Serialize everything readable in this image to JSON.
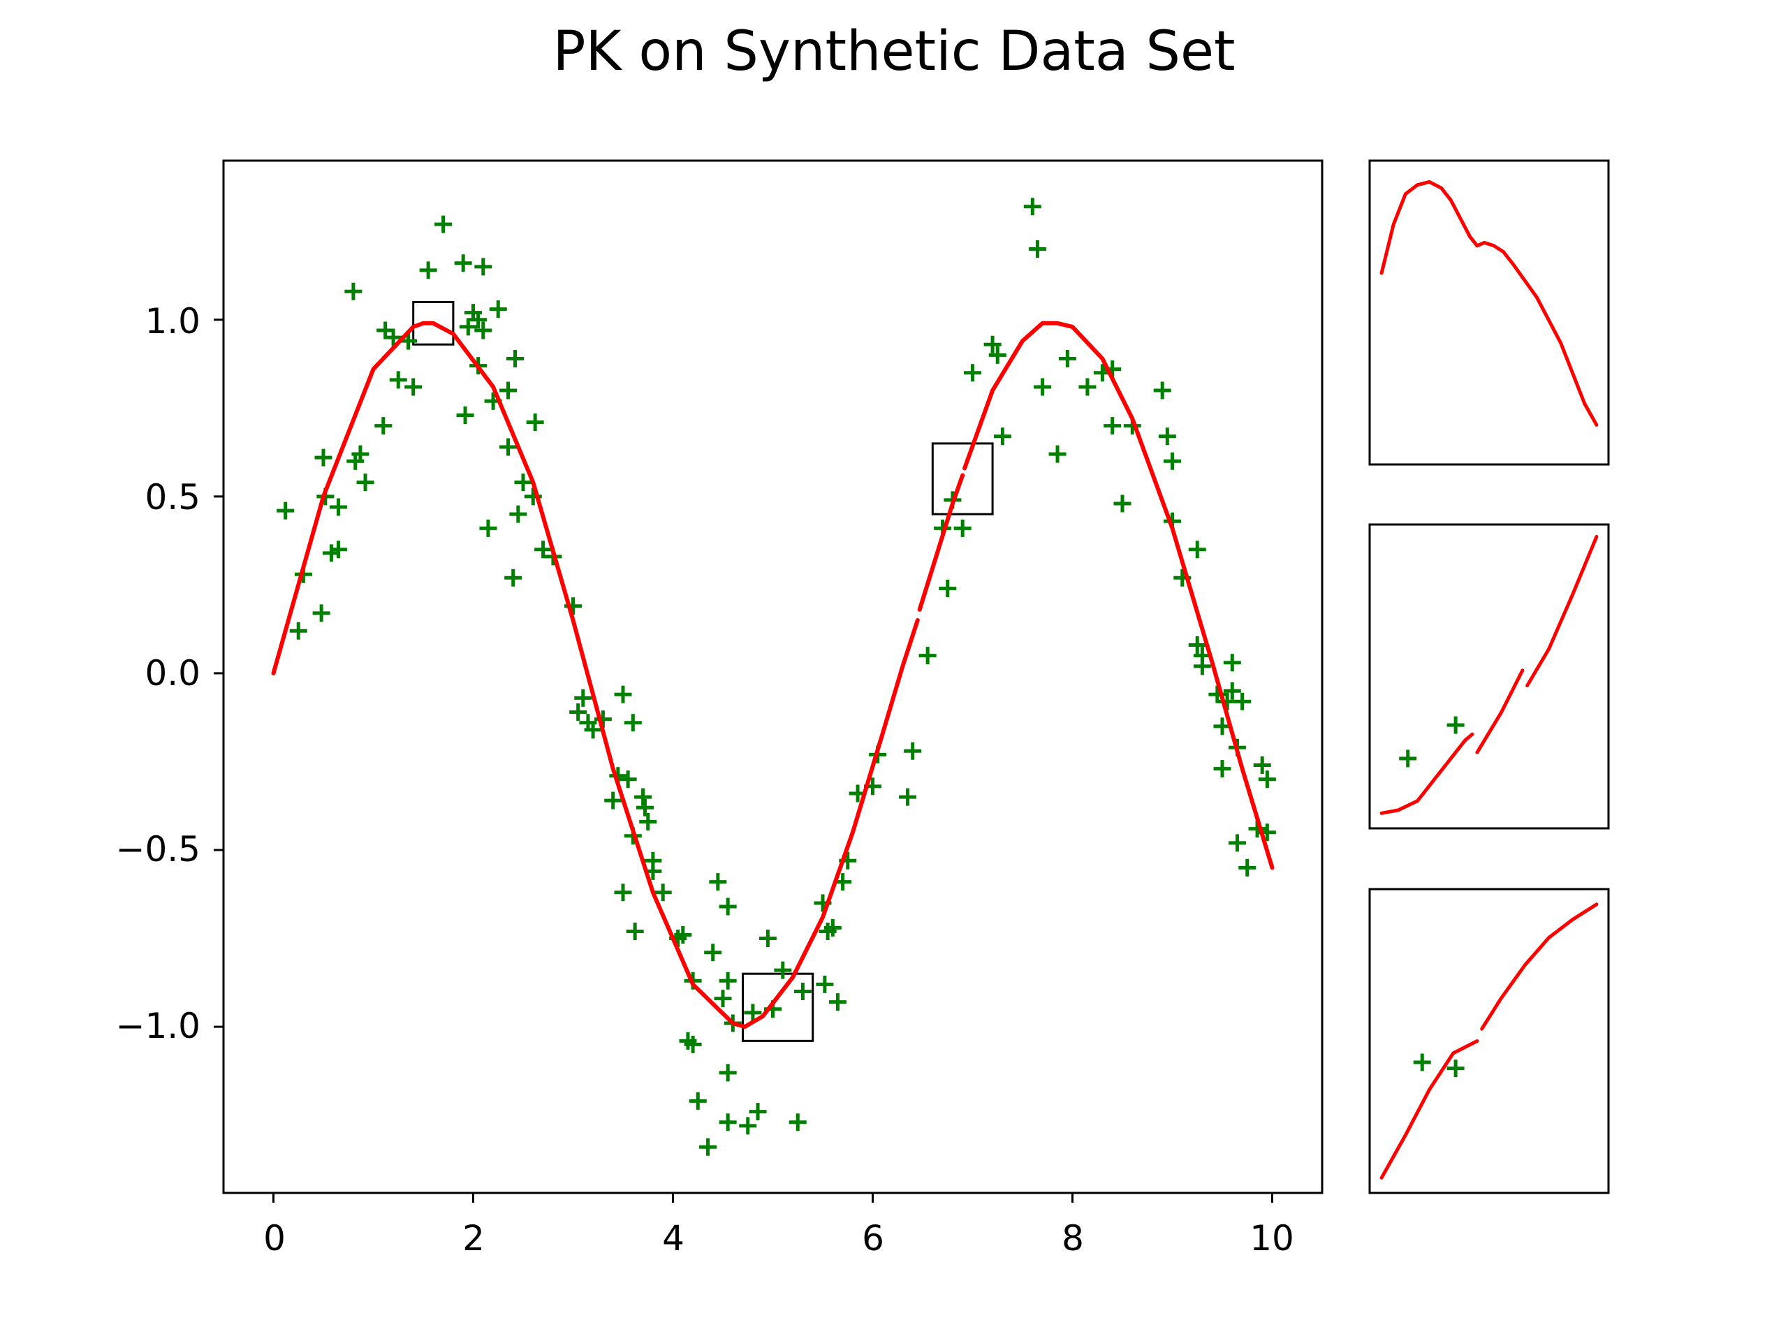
{
  "chart_data": {
    "title": "PK on Synthetic Data Set",
    "colors": {
      "data_points": "#007f00",
      "fit_curve": "#ff0000",
      "frame": "#000000",
      "background": "#ffffff"
    },
    "main": {
      "type": "scatter",
      "xlim": [
        -0.5,
        10.5
      ],
      "ylim": [
        -1.47,
        1.45
      ],
      "x_ticks": [
        0,
        2,
        4,
        6,
        8,
        10
      ],
      "x_tick_labels": [
        "0",
        "2",
        "4",
        "6",
        "8",
        "10"
      ],
      "y_ticks": [
        -1.0,
        -0.5,
        0.0,
        0.5,
        1.0
      ],
      "y_tick_labels": [
        "−1.0",
        "−0.5",
        "0.0",
        "0.5",
        "1.0"
      ],
      "series": [
        {
          "type": "scatter",
          "marker": "plus",
          "points": [
            [
              0.12,
              0.46
            ],
            [
              0.25,
              0.12
            ],
            [
              0.3,
              0.28
            ],
            [
              0.48,
              0.17
            ],
            [
              0.5,
              0.61
            ],
            [
              0.52,
              0.5
            ],
            [
              0.58,
              0.34
            ],
            [
              0.65,
              0.35
            ],
            [
              0.65,
              0.47
            ],
            [
              0.8,
              1.08
            ],
            [
              0.82,
              0.6
            ],
            [
              0.87,
              0.62
            ],
            [
              0.92,
              0.54
            ],
            [
              1.1,
              0.7
            ],
            [
              1.12,
              0.97
            ],
            [
              1.2,
              0.95
            ],
            [
              1.25,
              0.83
            ],
            [
              1.35,
              0.94
            ],
            [
              1.4,
              0.81
            ],
            [
              1.55,
              1.14
            ],
            [
              1.7,
              1.27
            ],
            [
              1.9,
              1.16
            ],
            [
              1.92,
              0.73
            ],
            [
              1.95,
              0.98
            ],
            [
              2.0,
              1.02
            ],
            [
              2.05,
              1.0
            ],
            [
              2.05,
              0.87
            ],
            [
              2.1,
              1.15
            ],
            [
              2.1,
              0.97
            ],
            [
              2.15,
              0.41
            ],
            [
              2.2,
              0.77
            ],
            [
              2.25,
              1.03
            ],
            [
              2.35,
              0.8
            ],
            [
              2.35,
              0.64
            ],
            [
              2.4,
              0.27
            ],
            [
              2.42,
              0.89
            ],
            [
              2.45,
              0.45
            ],
            [
              2.5,
              0.54
            ],
            [
              2.6,
              0.5
            ],
            [
              2.62,
              0.71
            ],
            [
              2.7,
              0.35
            ],
            [
              2.8,
              0.33
            ],
            [
              3.0,
              0.19
            ],
            [
              3.05,
              -0.11
            ],
            [
              3.1,
              -0.07
            ],
            [
              3.15,
              -0.14
            ],
            [
              3.2,
              -0.16
            ],
            [
              3.3,
              -0.13
            ],
            [
              3.4,
              -0.36
            ],
            [
              3.45,
              -0.29
            ],
            [
              3.5,
              -0.06
            ],
            [
              3.5,
              -0.62
            ],
            [
              3.55,
              -0.3
            ],
            [
              3.6,
              -0.14
            ],
            [
              3.62,
              -0.73
            ],
            [
              3.6,
              -0.46
            ],
            [
              3.7,
              -0.35
            ],
            [
              3.72,
              -0.38
            ],
            [
              3.75,
              -0.42
            ],
            [
              3.8,
              -0.53
            ],
            [
              3.8,
              -0.56
            ],
            [
              3.9,
              -0.62
            ],
            [
              4.05,
              -0.75
            ],
            [
              4.1,
              -0.74
            ],
            [
              4.15,
              -1.04
            ],
            [
              4.2,
              -1.05
            ],
            [
              4.2,
              -0.87
            ],
            [
              4.25,
              -1.21
            ],
            [
              4.35,
              -1.34
            ],
            [
              4.4,
              -0.79
            ],
            [
              4.45,
              -0.59
            ],
            [
              4.5,
              -0.92
            ],
            [
              4.55,
              -0.87
            ],
            [
              4.55,
              -0.66
            ],
            [
              4.55,
              -1.27
            ],
            [
              4.55,
              -1.13
            ],
            [
              4.6,
              -0.99
            ],
            [
              4.75,
              -1.28
            ],
            [
              4.8,
              -0.96
            ],
            [
              4.85,
              -1.24
            ],
            [
              4.95,
              -0.75
            ],
            [
              5.0,
              -0.95
            ],
            [
              5.1,
              -0.84
            ],
            [
              5.25,
              -1.27
            ],
            [
              5.3,
              -0.9
            ],
            [
              5.5,
              -0.65
            ],
            [
              5.52,
              -0.88
            ],
            [
              5.55,
              -0.73
            ],
            [
              5.6,
              -0.72
            ],
            [
              5.65,
              -0.93
            ],
            [
              5.7,
              -0.59
            ],
            [
              5.75,
              -0.53
            ],
            [
              5.85,
              -0.34
            ],
            [
              6.0,
              -0.32
            ],
            [
              6.05,
              -0.23
            ],
            [
              6.35,
              -0.35
            ],
            [
              6.4,
              -0.22
            ],
            [
              6.55,
              0.05
            ],
            [
              6.7,
              0.41
            ],
            [
              6.75,
              0.24
            ],
            [
              6.8,
              0.49
            ],
            [
              6.9,
              0.41
            ],
            [
              7.0,
              0.85
            ],
            [
              7.2,
              0.93
            ],
            [
              7.25,
              0.9
            ],
            [
              7.3,
              0.67
            ],
            [
              7.6,
              1.32
            ],
            [
              7.65,
              1.2
            ],
            [
              7.7,
              0.81
            ],
            [
              7.85,
              0.62
            ],
            [
              7.95,
              0.89
            ],
            [
              8.15,
              0.81
            ],
            [
              8.3,
              0.85
            ],
            [
              8.4,
              0.86
            ],
            [
              8.4,
              0.7
            ],
            [
              8.5,
              0.48
            ],
            [
              8.6,
              0.7
            ],
            [
              8.9,
              0.8
            ],
            [
              8.95,
              0.67
            ],
            [
              9.0,
              0.6
            ],
            [
              9.0,
              0.43
            ],
            [
              9.1,
              0.27
            ],
            [
              9.25,
              0.35
            ],
            [
              9.25,
              0.08
            ],
            [
              9.3,
              0.05
            ],
            [
              9.3,
              0.02
            ],
            [
              9.45,
              -0.06
            ],
            [
              9.5,
              -0.15
            ],
            [
              9.5,
              -0.27
            ],
            [
              9.55,
              -0.08
            ],
            [
              9.6,
              -0.05
            ],
            [
              9.6,
              0.03
            ],
            [
              9.65,
              -0.48
            ],
            [
              9.65,
              -0.21
            ],
            [
              9.7,
              -0.08
            ],
            [
              9.75,
              -0.55
            ],
            [
              9.85,
              -0.44
            ],
            [
              9.9,
              -0.26
            ],
            [
              9.95,
              -0.3
            ],
            [
              9.95,
              -0.45
            ]
          ]
        },
        {
          "type": "line",
          "segments": [
            {
              "x": [
                0.0,
                0.5,
                1.0,
                1.4,
                1.5,
                1.6,
                1.8,
                2.2,
                2.6,
                3.0,
                3.4,
                3.8,
                4.2,
                4.6,
                4.72,
                4.9,
                5.2,
                5.5,
                5.8,
                6.1,
                6.3,
                6.45
              ],
              "y": [
                0.0,
                0.5,
                0.86,
                0.98,
                0.99,
                0.99,
                0.96,
                0.81,
                0.54,
                0.15,
                -0.27,
                -0.62,
                -0.88,
                -0.99,
                -1.0,
                -0.97,
                -0.86,
                -0.69,
                -0.45,
                -0.17,
                0.02,
                0.15
              ]
            },
            {
              "x": [
                6.47,
                6.8,
                6.9
              ],
              "y": [
                0.18,
                0.48,
                0.56
              ]
            },
            {
              "x": [
                6.92,
                7.2,
                7.5,
                7.7,
                7.85,
                8.0,
                8.3,
                8.6,
                9.0,
                9.4,
                9.7,
                10.0
              ],
              "y": [
                0.58,
                0.8,
                0.94,
                0.99,
                0.99,
                0.98,
                0.89,
                0.72,
                0.41,
                0.03,
                -0.27,
                -0.55
              ]
            }
          ]
        }
      ],
      "highlight_boxes": [
        {
          "x0": 1.4,
          "x1": 1.8,
          "y0": 0.93,
          "y1": 1.05
        },
        {
          "x0": 4.7,
          "x1": 5.4,
          "y0": -1.04,
          "y1": -0.85
        },
        {
          "x0": 6.6,
          "x1": 7.2,
          "y0": 0.45,
          "y1": 0.65
        }
      ]
    },
    "insets": [
      {
        "type": "line",
        "xlim": [
          0,
          10
        ],
        "ylim": [
          0,
          10
        ],
        "curve_segments": [
          {
            "x": [
              0.5,
              1.0,
              1.5,
              2.0,
              2.5,
              3.0,
              3.4,
              4.2,
              4.5,
              4.8,
              5.2,
              5.6,
              6.0,
              7.0,
              8.0,
              9.0,
              9.5
            ],
            "y": [
              6.3,
              7.9,
              8.9,
              9.2,
              9.3,
              9.1,
              8.7,
              7.5,
              7.2,
              7.3,
              7.2,
              7.0,
              6.6,
              5.5,
              4.0,
              2.0,
              1.3
            ]
          }
        ],
        "points": []
      },
      {
        "type": "line",
        "xlim": [
          0,
          10
        ],
        "ylim": [
          0,
          10
        ],
        "curve_segments": [
          {
            "x": [
              0.5,
              1.2,
              2.0,
              3.0,
              4.0,
              4.3
            ],
            "y": [
              0.5,
              0.6,
              0.9,
              1.9,
              2.9,
              3.1
            ]
          },
          {
            "x": [
              4.5,
              5.5,
              6.4
            ],
            "y": [
              2.5,
              3.8,
              5.2
            ]
          },
          {
            "x": [
              6.6,
              7.5,
              8.5,
              9.5
            ],
            "y": [
              4.7,
              5.9,
              7.7,
              9.6
            ]
          }
        ],
        "points": [
          [
            1.6,
            2.3
          ],
          [
            3.6,
            3.4
          ]
        ]
      },
      {
        "type": "line",
        "xlim": [
          0,
          10
        ],
        "ylim": [
          0,
          10
        ],
        "curve_segments": [
          {
            "x": [
              0.5,
              1.5,
              2.5,
              3.5,
              4.5
            ],
            "y": [
              0.5,
              1.9,
              3.4,
              4.6,
              5.0
            ]
          },
          {
            "x": [
              4.7,
              5.5,
              6.5,
              7.5,
              8.5,
              9.5
            ],
            "y": [
              5.4,
              6.4,
              7.5,
              8.4,
              9.0,
              9.5
            ]
          }
        ],
        "points": [
          [
            2.2,
            4.3
          ],
          [
            3.6,
            4.1
          ]
        ]
      }
    ]
  }
}
